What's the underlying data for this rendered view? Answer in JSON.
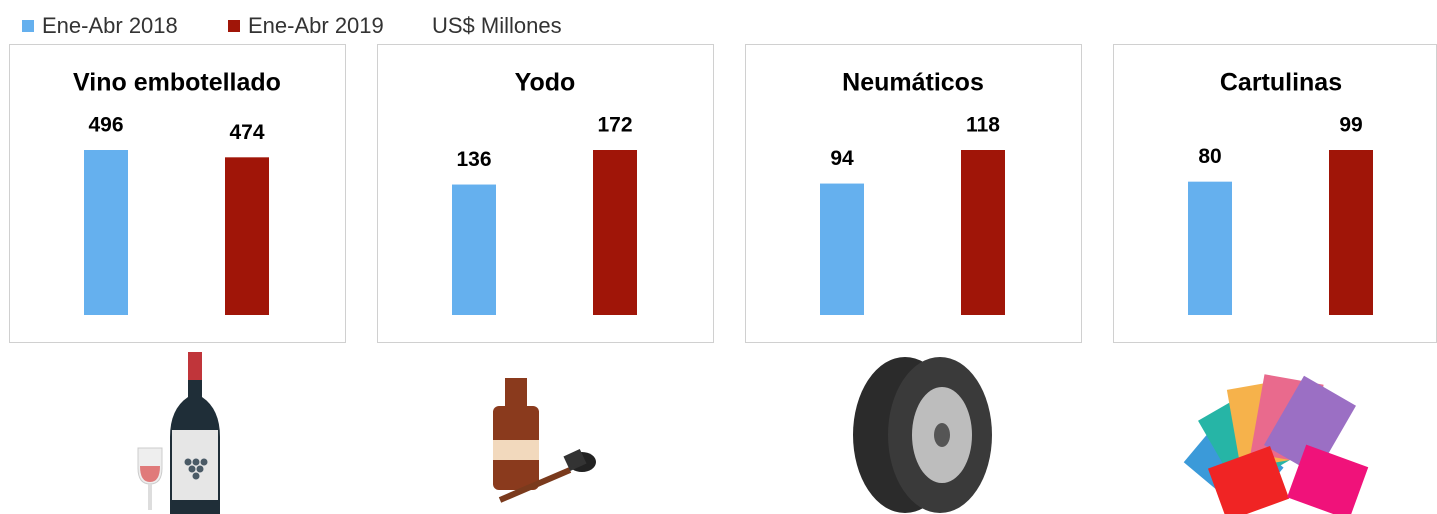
{
  "legend": {
    "items": [
      {
        "name": "Ene-Abr 2018",
        "color": "#65b0ee"
      },
      {
        "name": "Ene-Abr 2019",
        "color": "#a01508"
      }
    ],
    "unit": "US$ Millones"
  },
  "chart_data": [
    {
      "type": "bar",
      "title": "Vino embotellado",
      "values": [
        496,
        474
      ]
    },
    {
      "type": "bar",
      "title": "Yodo",
      "values": [
        136,
        172
      ]
    },
    {
      "type": "bar",
      "title": "Neumáticos",
      "values": [
        94,
        118
      ]
    },
    {
      "type": "bar",
      "title": "Cartulinas",
      "values": [
        80,
        99
      ]
    }
  ]
}
